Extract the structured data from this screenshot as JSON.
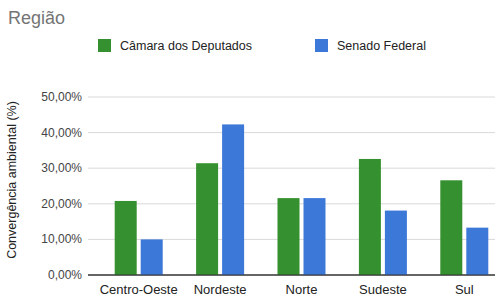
{
  "chart_data": {
    "type": "bar",
    "title": "Região",
    "y_label": "Convergência ambiental (%)",
    "categories": [
      "Centro-Oeste",
      "Nordeste",
      "Norte",
      "Sudeste",
      "Sul"
    ],
    "series": [
      {
        "name": "Câmara dos Deputados",
        "color": "#35902f",
        "values": [
          20.8,
          31.4,
          21.6,
          32.6,
          26.6
        ]
      },
      {
        "name": "Senado Federal",
        "color": "#3c78d8",
        "values": [
          10.0,
          42.3,
          21.6,
          18.1,
          13.3
        ]
      }
    ],
    "ylim": [
      0,
      50
    ],
    "yticks": [
      {
        "value": 0,
        "label": "0,00%"
      },
      {
        "value": 10,
        "label": "10,00%"
      },
      {
        "value": 20,
        "label": "20,00%"
      },
      {
        "value": 30,
        "label": "30,00%"
      },
      {
        "value": 40,
        "label": "40,00%"
      },
      {
        "value": 50,
        "label": "50,00%"
      }
    ],
    "grid": true,
    "legend": "top"
  }
}
